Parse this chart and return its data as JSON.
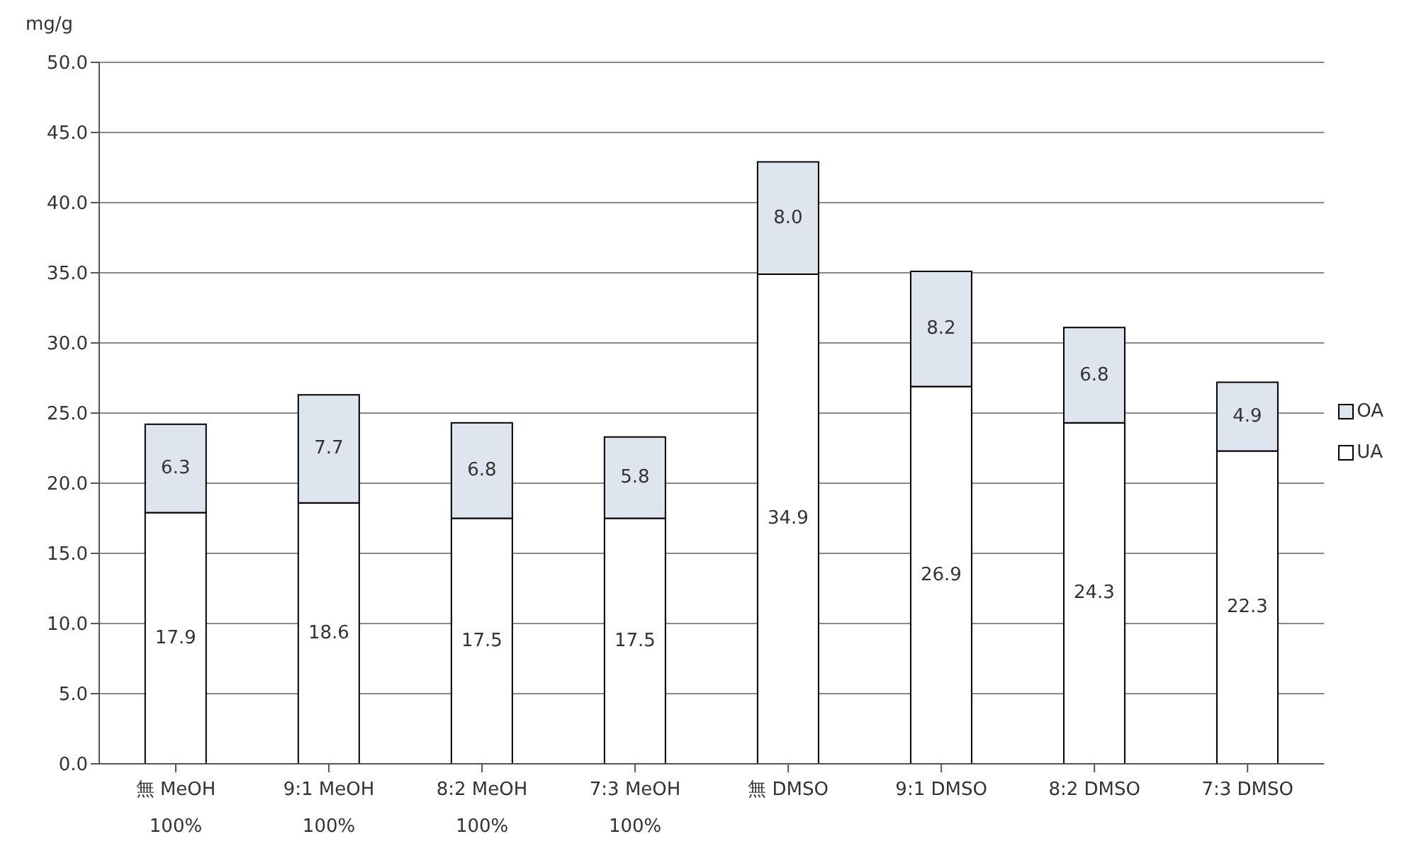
{
  "chart_data": {
    "type": "bar",
    "stacked": true,
    "ylabel": "mg/g",
    "categories": [
      "無 MeOH\n100%",
      "9:1 MeOH\n100%",
      "8:2 MeOH\n100%",
      "7:3 MeOH\n100%",
      "無 DMSO",
      "9:1 DMSO",
      "8:2 DMSO",
      "7:3 DMSO"
    ],
    "series": [
      {
        "name": "UA",
        "color": "#ffffff",
        "values": [
          17.9,
          18.6,
          17.5,
          17.5,
          34.9,
          26.9,
          24.3,
          22.3
        ],
        "value_labels": [
          "17.9",
          "18.6",
          "17.5",
          "17.5",
          "34.9",
          "26.9",
          "24.3",
          "22.3"
        ]
      },
      {
        "name": "OA",
        "color": "#dfe5ee",
        "values": [
          6.3,
          7.7,
          6.8,
          5.8,
          8.0,
          8.2,
          6.8,
          4.9
        ],
        "value_labels": [
          "6.3",
          "7.7",
          "6.8",
          "5.8",
          "8.0",
          "8.2",
          "6.8",
          "4.9"
        ]
      }
    ],
    "ylim": [
      0,
      50
    ],
    "yticks": [
      {
        "value": 0,
        "label": "0.0"
      },
      {
        "value": 5,
        "label": "5.0"
      },
      {
        "value": 10,
        "label": "10.0"
      },
      {
        "value": 15,
        "label": "15.0"
      },
      {
        "value": 20,
        "label": "20.0"
      },
      {
        "value": 25,
        "label": "25.0"
      },
      {
        "value": 30,
        "label": "30.0"
      },
      {
        "value": 35,
        "label": "35.0"
      },
      {
        "value": 40,
        "label": "40.0"
      },
      {
        "value": 45,
        "label": "45.0"
      },
      {
        "value": 50,
        "label": "50.0"
      }
    ],
    "grid": "y",
    "legend": "right"
  }
}
